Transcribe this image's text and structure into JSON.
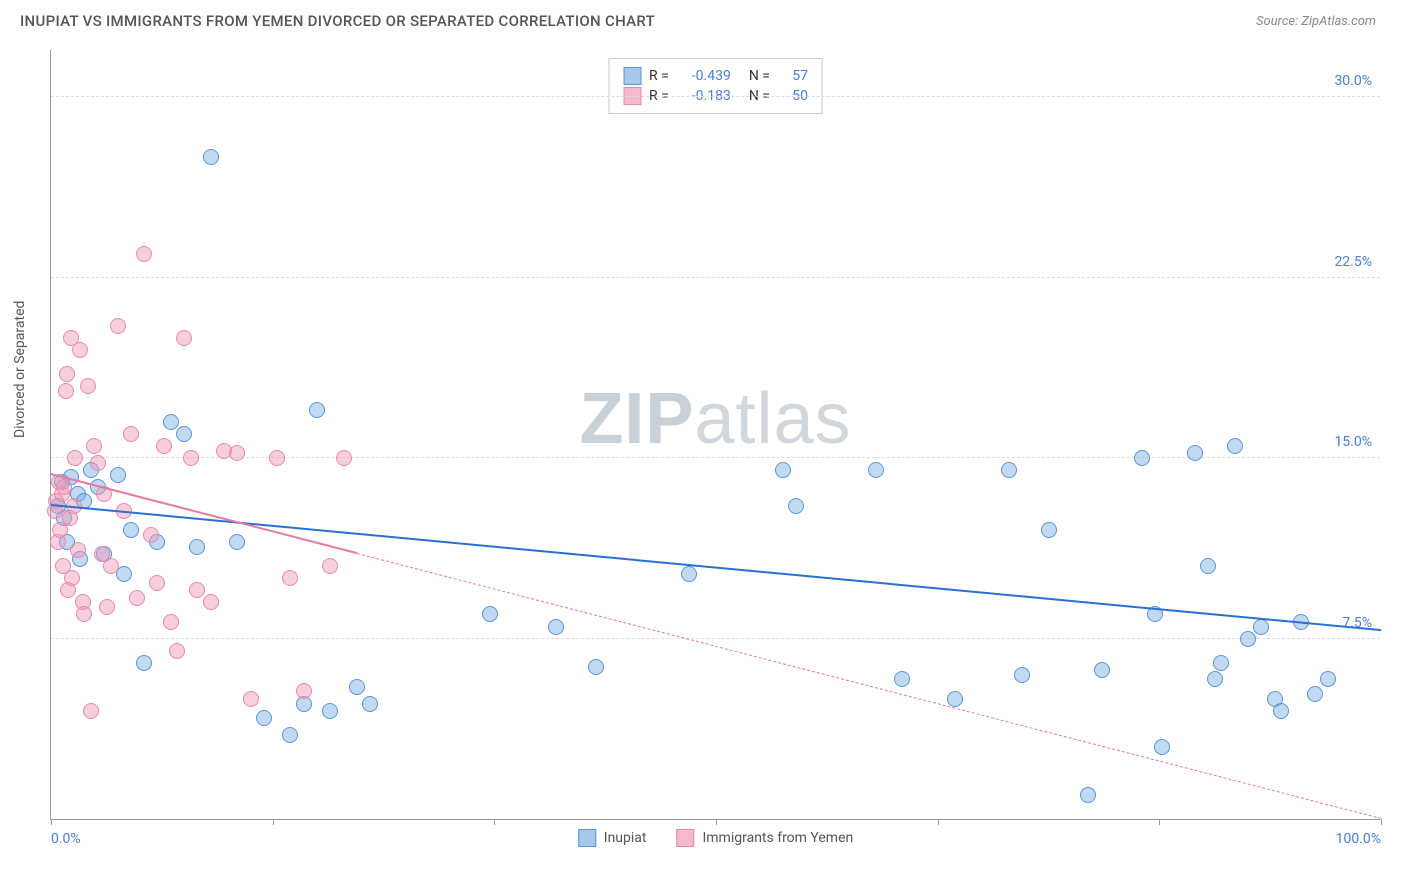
{
  "title": "INUPIAT VS IMMIGRANTS FROM YEMEN DIVORCED OR SEPARATED CORRELATION CHART",
  "source": "Source: ZipAtlas.com",
  "watermark_a": "ZIP",
  "watermark_b": "atlas",
  "chart": {
    "type": "scatter",
    "ylabel": "Divorced or Separated",
    "xlim": [
      0,
      100
    ],
    "ylim": [
      0,
      32
    ],
    "yticks": [
      {
        "v": 7.5,
        "label": "7.5%"
      },
      {
        "v": 15.0,
        "label": "15.0%"
      },
      {
        "v": 22.5,
        "label": "22.5%"
      },
      {
        "v": 30.0,
        "label": "30.0%"
      }
    ],
    "xtick_positions": [
      0,
      16.7,
      33.3,
      50,
      66.7,
      83.3,
      100
    ],
    "xtick_labels": {
      "left": "0.0%",
      "right": "100.0%"
    },
    "background_color": "#ffffff",
    "grid_color": "#dddddd",
    "series": [
      {
        "name": "Inupiat",
        "color_fill": "#a7c7ec",
        "color_stroke": "#5a95d8",
        "r": "-0.439",
        "n": "57",
        "trend": {
          "x1": 0,
          "y1": 13.0,
          "x2": 100,
          "y2": 7.8,
          "color": "#2a6fd6",
          "dashed_from_x": null
        },
        "points": [
          [
            0.5,
            13.0
          ],
          [
            0.8,
            14.0
          ],
          [
            1.0,
            12.5
          ],
          [
            1.2,
            11.5
          ],
          [
            1.5,
            14.2
          ],
          [
            2.0,
            13.5
          ],
          [
            2.2,
            10.8
          ],
          [
            2.5,
            13.2
          ],
          [
            3.0,
            14.5
          ],
          [
            3.5,
            13.8
          ],
          [
            4.0,
            11.0
          ],
          [
            5.0,
            14.3
          ],
          [
            5.5,
            10.2
          ],
          [
            6.0,
            12.0
          ],
          [
            7.0,
            6.5
          ],
          [
            8.0,
            11.5
          ],
          [
            9.0,
            16.5
          ],
          [
            10.0,
            16.0
          ],
          [
            11.0,
            11.3
          ],
          [
            12.0,
            27.5
          ],
          [
            14.0,
            11.5
          ],
          [
            16.0,
            4.2
          ],
          [
            18.0,
            3.5
          ],
          [
            19.0,
            4.8
          ],
          [
            20.0,
            17.0
          ],
          [
            21.0,
            4.5
          ],
          [
            23.0,
            5.5
          ],
          [
            24.0,
            4.8
          ],
          [
            33.0,
            8.5
          ],
          [
            38.0,
            8.0
          ],
          [
            41.0,
            6.3
          ],
          [
            48.0,
            10.2
          ],
          [
            55.0,
            14.5
          ],
          [
            56.0,
            13.0
          ],
          [
            62.0,
            14.5
          ],
          [
            64.0,
            5.8
          ],
          [
            68.0,
            5.0
          ],
          [
            72.0,
            14.5
          ],
          [
            73.0,
            6.0
          ],
          [
            75.0,
            12.0
          ],
          [
            78.0,
            1.0
          ],
          [
            79.0,
            6.2
          ],
          [
            82.0,
            15.0
          ],
          [
            83.0,
            8.5
          ],
          [
            83.5,
            3.0
          ],
          [
            86.0,
            15.2
          ],
          [
            87.0,
            10.5
          ],
          [
            87.5,
            5.8
          ],
          [
            88.0,
            6.5
          ],
          [
            89.0,
            15.5
          ],
          [
            90.0,
            7.5
          ],
          [
            91.0,
            8.0
          ],
          [
            92.0,
            5.0
          ],
          [
            92.5,
            4.5
          ],
          [
            94.0,
            8.2
          ],
          [
            95.0,
            5.2
          ],
          [
            96.0,
            5.8
          ]
        ]
      },
      {
        "name": "Immigrants from Yemen",
        "color_fill": "#f5b8ce",
        "color_stroke": "#e889ab",
        "r": "-0.183",
        "n": "50",
        "trend": {
          "x1": 0,
          "y1": 14.3,
          "x2": 100,
          "y2": 0.0,
          "color": "#e57ba3",
          "dashed_from_x": 23
        },
        "points": [
          [
            0.3,
            12.8
          ],
          [
            0.4,
            13.2
          ],
          [
            0.5,
            11.5
          ],
          [
            0.6,
            14.0
          ],
          [
            0.7,
            12.0
          ],
          [
            0.8,
            13.5
          ],
          [
            0.9,
            10.5
          ],
          [
            1.0,
            13.8
          ],
          [
            1.1,
            17.8
          ],
          [
            1.2,
            18.5
          ],
          [
            1.3,
            9.5
          ],
          [
            1.4,
            12.5
          ],
          [
            1.5,
            20.0
          ],
          [
            1.6,
            10.0
          ],
          [
            1.7,
            13.0
          ],
          [
            1.8,
            15.0
          ],
          [
            2.0,
            11.2
          ],
          [
            2.2,
            19.5
          ],
          [
            2.4,
            9.0
          ],
          [
            2.5,
            8.5
          ],
          [
            2.8,
            18.0
          ],
          [
            3.0,
            4.5
          ],
          [
            3.2,
            15.5
          ],
          [
            3.5,
            14.8
          ],
          [
            3.8,
            11.0
          ],
          [
            4.0,
            13.5
          ],
          [
            4.2,
            8.8
          ],
          [
            4.5,
            10.5
          ],
          [
            5.0,
            20.5
          ],
          [
            5.5,
            12.8
          ],
          [
            6.0,
            16.0
          ],
          [
            6.5,
            9.2
          ],
          [
            7.0,
            23.5
          ],
          [
            7.5,
            11.8
          ],
          [
            8.0,
            9.8
          ],
          [
            8.5,
            15.5
          ],
          [
            9.0,
            8.2
          ],
          [
            9.5,
            7.0
          ],
          [
            10.0,
            20.0
          ],
          [
            10.5,
            15.0
          ],
          [
            11.0,
            9.5
          ],
          [
            12.0,
            9.0
          ],
          [
            13.0,
            15.3
          ],
          [
            14.0,
            15.2
          ],
          [
            15.0,
            5.0
          ],
          [
            17.0,
            15.0
          ],
          [
            18.0,
            10.0
          ],
          [
            19.0,
            5.3
          ],
          [
            21.0,
            10.5
          ],
          [
            22.0,
            15.0
          ]
        ]
      }
    ]
  }
}
